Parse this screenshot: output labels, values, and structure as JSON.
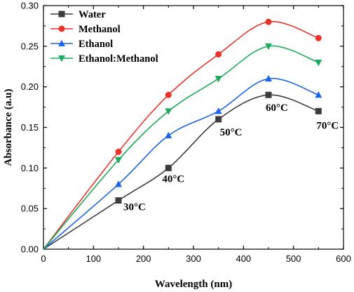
{
  "chart_data": {
    "type": "line",
    "xlabel": "Wavelength (nm)",
    "ylabel": "Absorbance (a.u)",
    "xlim": [
      0,
      600
    ],
    "ylim": [
      0,
      0.3
    ],
    "xticks": [
      0,
      100,
      200,
      300,
      400,
      500,
      600
    ],
    "xtick_labels": [
      "0",
      "100",
      "200",
      "300",
      "400",
      "500",
      "600"
    ],
    "yticks": [
      0,
      0.05,
      0.1,
      0.15,
      0.2,
      0.25,
      0.3
    ],
    "ytick_labels": [
      "0.00",
      "0.05",
      "0.10",
      "0.15",
      "0.20",
      "0.25",
      "0.30"
    ],
    "grid": false,
    "legend_position": "top-left",
    "series": [
      {
        "name": "Water",
        "color": "#3c3c3c",
        "marker": "square",
        "x": [
          0,
          150,
          250,
          350,
          450,
          550
        ],
        "y": [
          0,
          0.06,
          0.1,
          0.16,
          0.19,
          0.17
        ]
      },
      {
        "name": "Methanol",
        "color": "#e8332a",
        "marker": "circle",
        "x": [
          0,
          150,
          250,
          350,
          450,
          550
        ],
        "y": [
          0,
          0.12,
          0.19,
          0.24,
          0.28,
          0.26
        ]
      },
      {
        "name": "Ethanol",
        "color": "#1e64e6",
        "marker": "triangle-up",
        "x": [
          0,
          150,
          250,
          350,
          450,
          550
        ],
        "y": [
          0,
          0.08,
          0.14,
          0.17,
          0.21,
          0.19
        ]
      },
      {
        "name": "Ethanol:Methanol",
        "color": "#1eaa5a",
        "marker": "triangle-down",
        "x": [
          0,
          150,
          250,
          350,
          450,
          550
        ],
        "y": [
          0,
          0.11,
          0.17,
          0.21,
          0.25,
          0.23
        ]
      }
    ],
    "annotations": [
      {
        "text": "30°C",
        "x": 150,
        "y": 0.06
      },
      {
        "text": "40°C",
        "x": 250,
        "y": 0.1
      },
      {
        "text": "50°C",
        "x": 350,
        "y": 0.16
      },
      {
        "text": "60°C",
        "x": 450,
        "y": 0.19
      },
      {
        "text": "70°C",
        "x": 550,
        "y": 0.17
      }
    ]
  }
}
